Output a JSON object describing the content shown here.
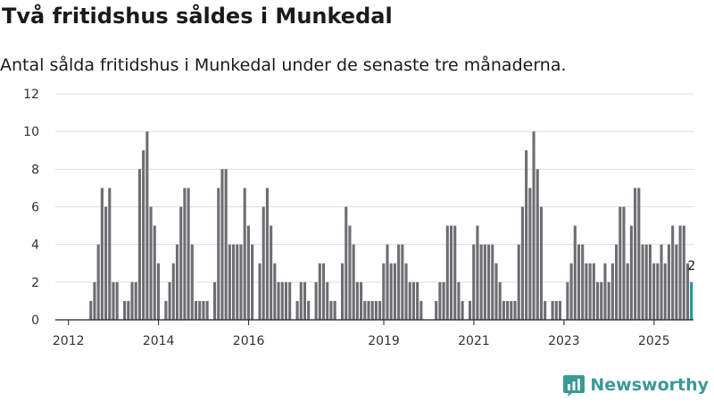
{
  "header": {
    "title": "Två fritidshus såldes i Munkedal",
    "subtitle": "Antal sålda fritidshus i Munkedal under de senaste tre månaderna."
  },
  "brand": {
    "name": "Newsworthy",
    "color": "#3a9a95"
  },
  "colors": {
    "bar": "#6e6d71",
    "highlight": "#1e9a94",
    "grid": "#dddddd",
    "axis": "#222222"
  },
  "chart_data": {
    "type": "bar",
    "title": "Två fritidshus såldes i Munkedal",
    "subtitle": "Antal sålda fritidshus i Munkedal under de senaste tre månaderna.",
    "xlabel": "",
    "ylabel": "",
    "ylim": [
      0,
      12
    ],
    "yticks": [
      0,
      2,
      4,
      6,
      8,
      10,
      12
    ],
    "grid": true,
    "period_start": "2011-10",
    "period_end": "2025-09",
    "xtick_labels": [
      {
        "label": "2012",
        "period": "2012-01"
      },
      {
        "label": "2014",
        "period": "2014-01"
      },
      {
        "label": "2016",
        "period": "2016-01"
      },
      {
        "label": "2019",
        "period": "2019-01"
      },
      {
        "label": "2021",
        "period": "2021-01"
      },
      {
        "label": "2023",
        "period": "2023-01"
      },
      {
        "label": "2025",
        "period": "2025-01"
      }
    ],
    "values": [
      null,
      null,
      null,
      null,
      null,
      null,
      null,
      null,
      null,
      1,
      2,
      4,
      7,
      6,
      7,
      2,
      2,
      null,
      1,
      1,
      2,
      2,
      8,
      9,
      10,
      6,
      5,
      3,
      null,
      1,
      2,
      3,
      4,
      6,
      7,
      7,
      4,
      1,
      1,
      1,
      1,
      null,
      2,
      7,
      8,
      8,
      4,
      4,
      4,
      4,
      7,
      5,
      4,
      null,
      3,
      6,
      7,
      5,
      3,
      2,
      2,
      2,
      2,
      null,
      1,
      2,
      2,
      1,
      null,
      2,
      3,
      3,
      2,
      1,
      1,
      null,
      3,
      6,
      5,
      4,
      2,
      2,
      1,
      1,
      1,
      1,
      1,
      3,
      4,
      3,
      3,
      4,
      4,
      3,
      2,
      2,
      2,
      1,
      null,
      null,
      null,
      1,
      2,
      2,
      5,
      5,
      5,
      2,
      1,
      null,
      1,
      4,
      5,
      4,
      4,
      4,
      4,
      3,
      2,
      1,
      1,
      1,
      1,
      4,
      6,
      9,
      7,
      10,
      8,
      6,
      1,
      null,
      1,
      1,
      1,
      null,
      2,
      3,
      5,
      4,
      4,
      3,
      3,
      3,
      2,
      2,
      3,
      2,
      3,
      4,
      6,
      6,
      3,
      5,
      7,
      7,
      4,
      4,
      4,
      3,
      3,
      4,
      3,
      4,
      5,
      4,
      5,
      5,
      3,
      2
    ],
    "highlight_last": true,
    "annotations": [
      {
        "label": "2",
        "position": "last-bar"
      }
    ]
  }
}
